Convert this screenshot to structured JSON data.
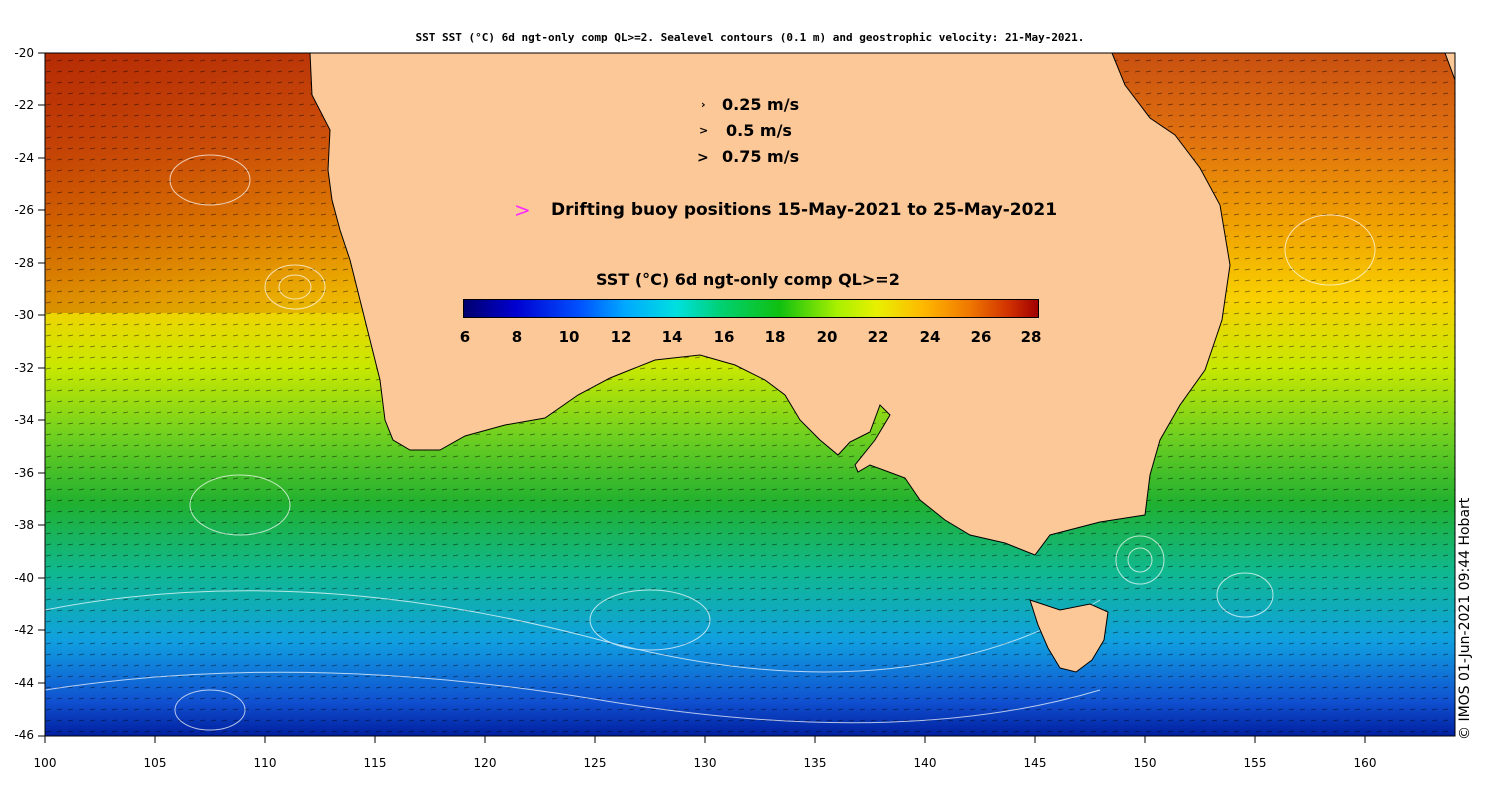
{
  "title": "SST SST (°C) 6d ngt-only comp QL>=2. Sealevel contours (0.1 m) and geostrophic velocity: 21-May-2021.",
  "y_axis": {
    "ticks": [
      "-20",
      "-22",
      "-24",
      "-26",
      "-28",
      "-30",
      "-32",
      "-34",
      "-36",
      "-38",
      "-40",
      "-42",
      "-44",
      "-46"
    ]
  },
  "x_axis": {
    "ticks": [
      "100",
      "105",
      "110",
      "115",
      "120",
      "125",
      "130",
      "135",
      "140",
      "145",
      "150",
      "155",
      "160"
    ]
  },
  "velocity_legend": [
    {
      "label": "0.25 m/s"
    },
    {
      "label": "0.5 m/s"
    },
    {
      "label": "0.75 m/s"
    }
  ],
  "buoy_legend": {
    "label": "Drifting buoy positions 15-May-2021 to 25-May-2021",
    "color": "#ff2bff"
  },
  "colorbar": {
    "title": "SST (°C) 6d ngt-only comp QL>=2",
    "ticks": [
      "6",
      "8",
      "10",
      "12",
      "14",
      "16",
      "18",
      "20",
      "22",
      "24",
      "26",
      "28"
    ],
    "range": [
      6,
      28
    ]
  },
  "credit": "© IMOS 01-Jun-2021 09:44 Hobart",
  "colors": {
    "land": "#fcc898",
    "contour": "#ffffff",
    "coastline": "#000000"
  }
}
